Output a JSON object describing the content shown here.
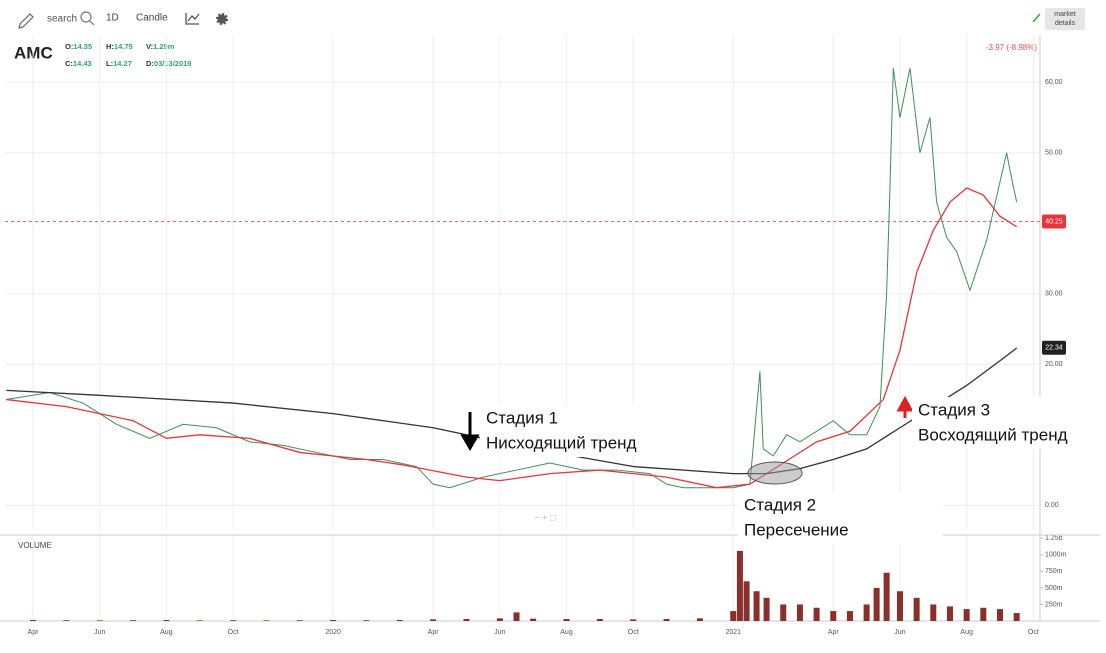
{
  "toolbar": {
    "search": "search",
    "interval": "1D",
    "chart_style": "Candle",
    "market_details": [
      "market",
      "details"
    ]
  },
  "chart_data": {
    "type": "line",
    "symbol": "AMC",
    "ohlc": [
      {
        "label": "O:",
        "value": 14.35
      },
      {
        "label": "H:",
        "value": 14.75
      },
      {
        "label": "V:",
        "value": "1.29m"
      },
      {
        "label": "C:",
        "value": 14.43
      },
      {
        "label": "L:",
        "value": 14.27
      },
      {
        "label": "D:",
        "value": "03/13/2019"
      }
    ],
    "change": "-3.97 (-8.98%)",
    "xlim": [
      -0.84,
      30.2
    ],
    "xticks": [
      {
        "value": 0,
        "label": "Apr"
      },
      {
        "value": 2,
        "label": "Jun"
      },
      {
        "value": 4,
        "label": "Aug"
      },
      {
        "value": 6,
        "label": "Oct"
      },
      {
        "value": 9,
        "label": "2020"
      },
      {
        "value": 12,
        "label": "Apr"
      },
      {
        "value": 14,
        "label": "Jun"
      },
      {
        "value": 16,
        "label": "Aug"
      },
      {
        "value": 18,
        "label": "Oct"
      },
      {
        "value": 21,
        "label": "2021"
      },
      {
        "value": 24,
        "label": "Apr"
      },
      {
        "value": 26,
        "label": "Jun"
      },
      {
        "value": 28,
        "label": "Aug"
      },
      {
        "value": 30,
        "label": "Oct"
      }
    ],
    "ylim": [
      -3.5,
      66.7
    ],
    "yticks": [
      {
        "value": 0,
        "label": "0.00"
      },
      {
        "value": 20,
        "label": "20.00"
      },
      {
        "value": 30,
        "label": "30.00"
      },
      {
        "value": 50,
        "label": "50.00"
      },
      {
        "value": 60,
        "label": "60.00"
      }
    ],
    "grid": true,
    "series": [
      {
        "color": "#3f8f5a",
        "x": [
          -0.8,
          0.5,
          1.5,
          2.5,
          3.5,
          4.5,
          5.5,
          6.5,
          7.5,
          8.5,
          9.5,
          10.5,
          11.5,
          12,
          12.5,
          13.5,
          14.5,
          15.5,
          16.5,
          17.5,
          18.5,
          19,
          19.5,
          20.5,
          21,
          21.5,
          21.8,
          21.9,
          22.2,
          22.6,
          23,
          23.5,
          24,
          24.5,
          25,
          25.4,
          25.6,
          25.7,
          25.8,
          26,
          26.3,
          26.6,
          26.9,
          27.1,
          27.4,
          27.7,
          28.1,
          28.6,
          29.2,
          29.3,
          29.5
        ],
        "values": [
          15,
          16,
          14.5,
          11.5,
          9.5,
          11.5,
          11,
          9,
          8.5,
          7.5,
          6.5,
          6.5,
          5.5,
          3,
          2.5,
          4,
          5,
          6,
          5,
          5,
          4.5,
          3,
          2.5,
          2.5,
          2.5,
          3,
          19,
          8,
          7,
          10,
          9,
          10.5,
          12,
          10,
          10,
          14,
          30,
          45,
          62,
          55,
          62,
          50,
          55,
          43,
          38,
          36,
          30.5,
          37.6,
          50,
          47.5,
          43
        ]
      },
      {
        "color": "#e8343a",
        "x": [
          -0.8,
          1,
          3,
          4,
          5,
          6.5,
          8,
          9,
          10,
          11,
          13,
          14,
          15.5,
          17,
          19,
          20.5,
          21.5,
          22.5,
          23.5,
          24.5,
          25.5,
          26,
          26.5,
          27,
          27.5,
          28,
          28.5,
          29,
          29.5
        ],
        "values": [
          15,
          14,
          12,
          9.5,
          10,
          9.5,
          7.5,
          7,
          6.5,
          5.8,
          4,
          3.5,
          4.5,
          5,
          4,
          2.5,
          3,
          6,
          9,
          10.5,
          15,
          22,
          33,
          39,
          43,
          45,
          44,
          41,
          39.5
        ]
      },
      {
        "color": "#333333",
        "x": [
          -0.8,
          2,
          6,
          9,
          12,
          15,
          18,
          21,
          22,
          23,
          24,
          25,
          26,
          27,
          28,
          29,
          29.5
        ],
        "values": [
          16.3,
          15.6,
          14.5,
          13,
          11,
          8,
          5.5,
          4.5,
          4.5,
          5.2,
          6.5,
          8,
          11,
          14,
          17,
          20.5,
          22.3
        ]
      }
    ],
    "last_price": {
      "value": 40.25,
      "label": "40.25",
      "color": "#e8343a"
    },
    "ma_tag": {
      "value": 22.34,
      "label": "22.34",
      "color": "#222222"
    },
    "volume": {
      "label": "VOLUME",
      "color": "#8a2f2a",
      "ylim": [
        0,
        1300
      ],
      "yticks": [
        {
          "value": 1250,
          "label": "1.25b"
        },
        {
          "value": 1000,
          "label": "1000m"
        },
        {
          "value": 750,
          "label": "750m"
        },
        {
          "value": 500,
          "label": "500m"
        },
        {
          "value": 250,
          "label": "250m"
        }
      ],
      "x": [
        0,
        1,
        2,
        3,
        4,
        5,
        6,
        7,
        8,
        9,
        10,
        11,
        12,
        13,
        14,
        14.5,
        15,
        16,
        17,
        18,
        19,
        20,
        21,
        21.2,
        21.4,
        21.7,
        22,
        22.5,
        23,
        23.5,
        24,
        24.5,
        25,
        25.3,
        25.6,
        26,
        26.5,
        27,
        27.5,
        28,
        28.5,
        29,
        29.5
      ],
      "values": [
        15,
        12,
        10,
        12,
        15,
        10,
        12,
        10,
        12,
        15,
        12,
        15,
        25,
        30,
        40,
        130,
        35,
        30,
        30,
        25,
        30,
        40,
        150,
        1060,
        600,
        450,
        350,
        250,
        250,
        200,
        150,
        150,
        250,
        500,
        730,
        450,
        350,
        250,
        220,
        180,
        200,
        180,
        120
      ]
    },
    "annotations": [
      {
        "lines": [
          "Стадия 1",
          "Нисходящий тренд"
        ]
      },
      {
        "lines": [
          "Стадия 2",
          "Пересечение"
        ]
      },
      {
        "lines": [
          "Стадия 3",
          "Восходящий тренд"
        ]
      }
    ]
  }
}
